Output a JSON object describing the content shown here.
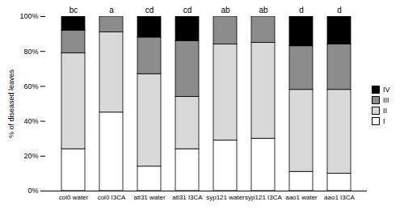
{
  "chart_data": {
    "type": "bar",
    "stacked": true,
    "y_label": "% of diseased leaves",
    "categories": [
      "col0 water",
      "col0 I3CA",
      "atl31 water",
      "atl31 I3CA",
      "syp121 water",
      "syp121 I3CA",
      "aao1 water",
      "aao1 I3CA"
    ],
    "series": [
      {
        "name": "I",
        "color": "#ffffff",
        "values": [
          24,
          45,
          14,
          24,
          29,
          30,
          11,
          10
        ]
      },
      {
        "name": "II",
        "color": "#d9d9d9",
        "values": [
          55,
          46,
          53,
          30,
          55,
          55,
          47,
          48
        ]
      },
      {
        "name": "III",
        "color": "#8c8c8c",
        "values": [
          13,
          9,
          21,
          32,
          16,
          15,
          25,
          26
        ]
      },
      {
        "name": "IV",
        "color": "#000000",
        "values": [
          8,
          0,
          12,
          14,
          0,
          0,
          17,
          16
        ]
      }
    ],
    "annotations": [
      {
        "x": "col0 water",
        "text": "bc"
      },
      {
        "x": "col0 I3CA",
        "text": "a"
      },
      {
        "x": "atl31 water",
        "text": "cd"
      },
      {
        "x": "atl31 I3CA",
        "text": "cd"
      },
      {
        "x": "syp121 water",
        "text": "ab"
      },
      {
        "x": "syp121 I3CA",
        "text": "ab"
      },
      {
        "x": "aao1 water",
        "text": "d"
      },
      {
        "x": "aao1 I3CA",
        "text": "d"
      }
    ],
    "ylim": [
      0,
      100
    ],
    "yticks": [
      {
        "value": 0,
        "label": "0%"
      },
      {
        "value": 20,
        "label": "20%"
      },
      {
        "value": 40,
        "label": "40%"
      },
      {
        "value": 60,
        "label": "60%"
      },
      {
        "value": 80,
        "label": "80%"
      },
      {
        "value": 100,
        "label": "100%"
      }
    ],
    "legend": "right",
    "grid": false
  }
}
